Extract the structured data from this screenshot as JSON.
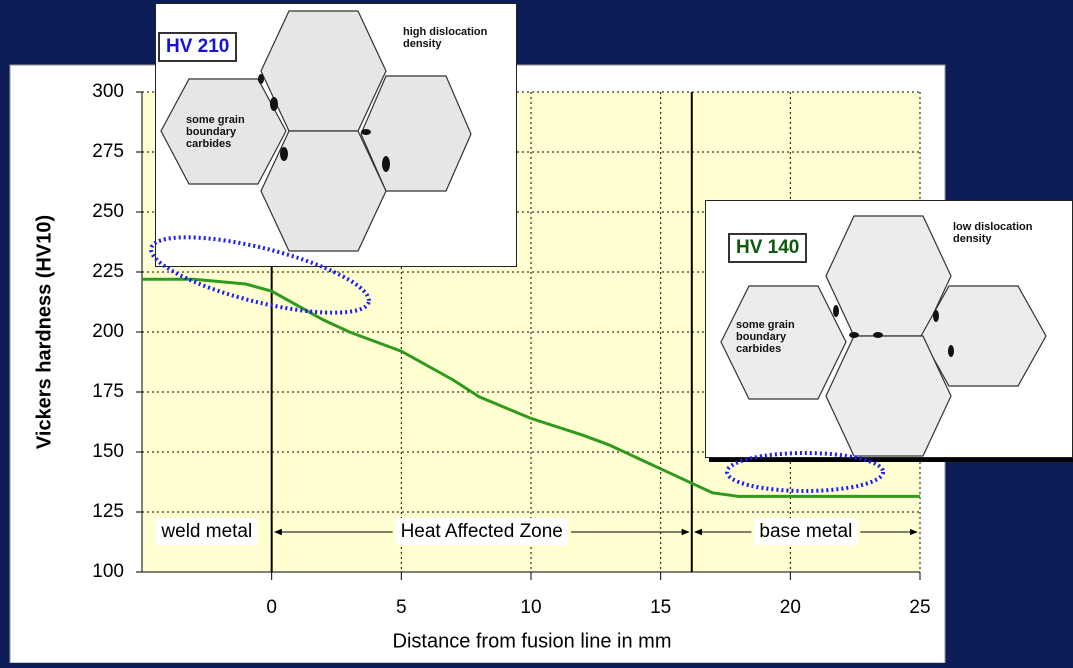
{
  "chart_data": {
    "type": "line",
    "xlabel": "Distance from fusion line in mm",
    "ylabel": "Vickers hardness (HV10)",
    "x": [
      -5,
      -3,
      -1,
      0,
      1,
      2,
      3,
      5,
      7,
      8,
      10,
      12,
      13,
      15,
      16,
      17,
      18,
      20,
      25
    ],
    "values": [
      222,
      222,
      220,
      217,
      211,
      205,
      200,
      192,
      180,
      173,
      164,
      157,
      153,
      143,
      138,
      133,
      131.5,
      131.5,
      131.5
    ],
    "color": "#2f9a1c",
    "xlim": [
      -5,
      25
    ],
    "ylim": [
      100,
      300
    ],
    "xticks": [
      0,
      5,
      10,
      15,
      20,
      25
    ],
    "yticks": [
      100,
      125,
      150,
      175,
      200,
      225,
      250,
      275,
      300
    ],
    "grid": true,
    "zone_boundaries": [
      0,
      16.2
    ],
    "annotations": [
      "weld metal",
      "Heat Affected Zone",
      "base metal"
    ]
  },
  "insets": [
    {
      "label": "HV 210",
      "note": "high dislocation density",
      "carbides": "some grain boundary carbides"
    },
    {
      "label": "HV 140",
      "note": "low dislocation density",
      "carbides": "some grain boundary carbides"
    }
  ]
}
